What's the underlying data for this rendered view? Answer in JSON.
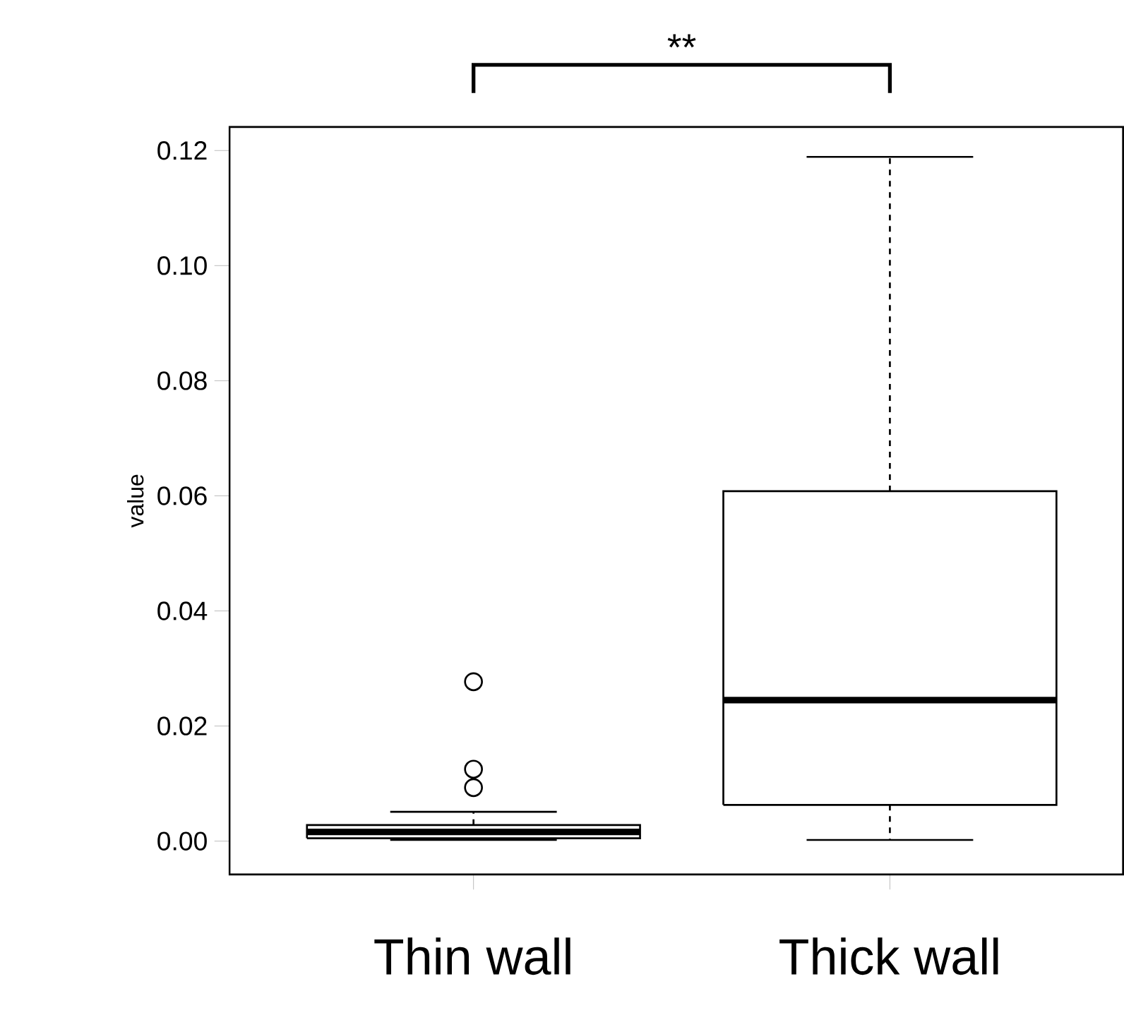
{
  "chart_data": {
    "type": "box",
    "ylabel": "value",
    "categories": [
      "Thin wall",
      "Thick wall"
    ],
    "boxes": [
      {
        "low": 0.0002,
        "q1": 0.0005,
        "median": 0.0016,
        "q3": 0.0028,
        "high": 0.0051,
        "outliers": [
          0.0277,
          0.0125,
          0.0093
        ]
      },
      {
        "low": 0.0002,
        "q1": 0.0063,
        "median": 0.0245,
        "q3": 0.0608,
        "high": 0.1189
      }
    ],
    "ylim": [
      -0.0058,
      0.1241
    ],
    "yticks": [
      {
        "value": 0,
        "label": "0.00"
      },
      {
        "value": 0.02,
        "label": "0.02"
      },
      {
        "value": 0.04,
        "label": "0.04"
      },
      {
        "value": 0.06,
        "label": "0.06"
      },
      {
        "value": 0.08,
        "label": "0.08"
      },
      {
        "value": 0.1,
        "label": "0.10"
      },
      {
        "value": 0.12,
        "label": "0.12"
      }
    ],
    "annotations": [
      "**"
    ]
  }
}
